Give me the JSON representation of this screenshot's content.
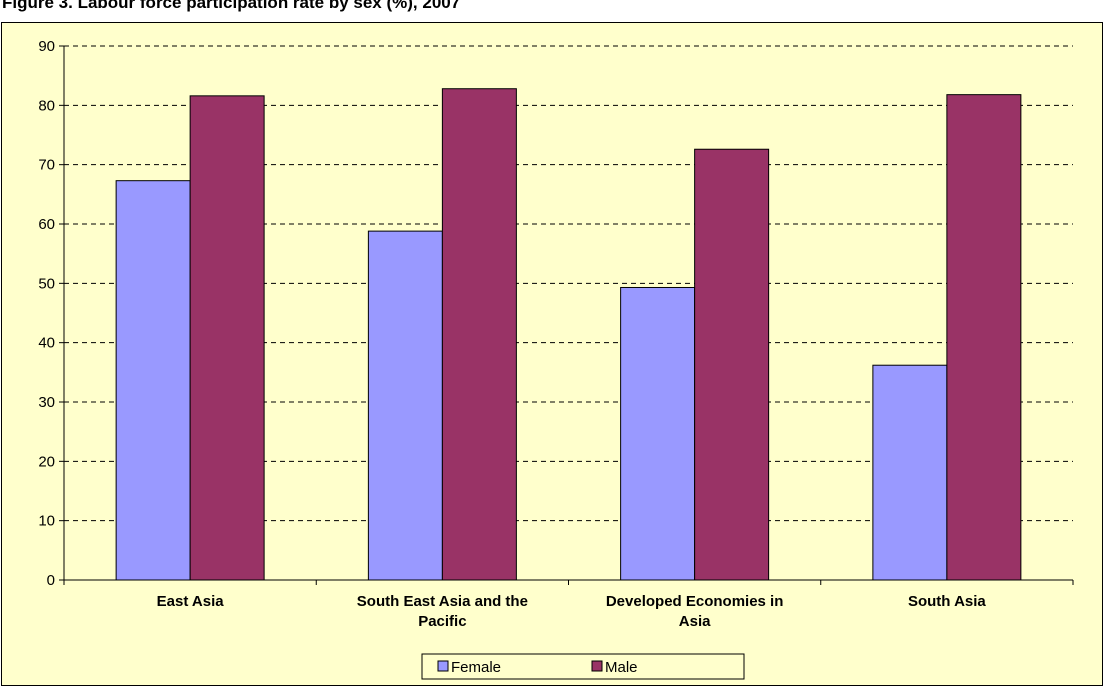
{
  "chart_data": {
    "type": "bar",
    "title": "Figure 3. Labour force participation rate by sex (%), 2007",
    "xlabel": "",
    "ylabel": "",
    "ylim": [
      0,
      90
    ],
    "yticks": [
      0,
      10,
      20,
      30,
      40,
      50,
      60,
      70,
      80,
      90
    ],
    "grid": true,
    "legend_position": "bottom",
    "categories": [
      [
        "East Asia"
      ],
      [
        "South East Asia and the",
        "Pacific"
      ],
      [
        "Developed Economies in",
        "Asia"
      ],
      [
        "South Asia"
      ]
    ],
    "series": [
      {
        "name": "Female",
        "color": "#9999ff",
        "values": [
          67.3,
          58.8,
          49.3,
          36.2
        ]
      },
      {
        "name": "Male",
        "color": "#993366",
        "values": [
          81.6,
          82.8,
          72.6,
          81.8
        ]
      }
    ],
    "background_color": "#ffffcc"
  }
}
